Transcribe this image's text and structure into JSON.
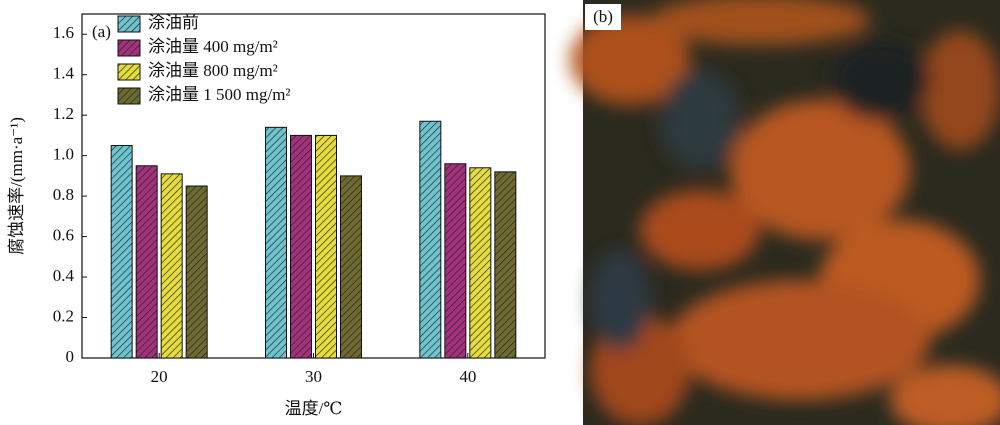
{
  "chart_data": {
    "type": "bar",
    "panel_label": "(a)",
    "xlabel": "温度/℃",
    "ylabel": "腐蚀速率/(mm·a⁻¹)",
    "categories": [
      "20",
      "30",
      "40"
    ],
    "series": [
      {
        "name": "涂油前",
        "color": "#6ec3cf",
        "values": [
          1.05,
          1.14,
          1.17
        ]
      },
      {
        "name": "涂油量 400 mg/m²",
        "color": "#a3317c",
        "values": [
          0.95,
          1.1,
          0.96
        ]
      },
      {
        "name": "涂油量 800 mg/m²",
        "color": "#e6dc3c",
        "values": [
          0.91,
          1.1,
          0.94
        ]
      },
      {
        "name": "涂油量 1 500 mg/m²",
        "color": "#6e6a30",
        "values": [
          0.85,
          0.9,
          0.92
        ]
      }
    ],
    "ylim": [
      0,
      1.7
    ],
    "yticks": [
      0,
      0.2,
      0.4,
      0.6,
      0.8,
      {
        "value": 1,
        "label": "1.0"
      },
      1.2,
      1.4,
      1.6
    ],
    "legend": "top-left",
    "hatch": true
  },
  "photo": {
    "panel_label": "(b)"
  }
}
